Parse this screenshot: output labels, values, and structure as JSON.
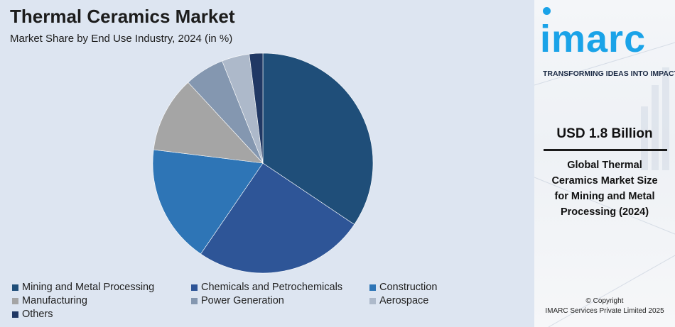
{
  "header": {
    "title": "Thermal Ceramics Market",
    "subtitle": "Market Share by End Use Industry, 2024 (in %)"
  },
  "chart_data": {
    "type": "pie",
    "title": "Thermal Ceramics Market",
    "subtitle": "Market Share by End Use Industry, 2024 (in %)",
    "legend_position": "bottom",
    "slices": [
      {
        "label": "Mining and Metal Processing",
        "value": 34.8,
        "color": "#1f4e79"
      },
      {
        "label": "Chemicals and Petrochemicals",
        "value": 25.4,
        "color": "#2e5597"
      },
      {
        "label": "Construction",
        "value": 17.6,
        "color": "#2e75b6"
      },
      {
        "label": "Manufacturing",
        "value": 11.3,
        "color": "#a5a5a5"
      },
      {
        "label": "Power Generation",
        "value": 5.9,
        "color": "#8497b0"
      },
      {
        "label": "Aerospace",
        "value": 4.1,
        "color": "#adb9ca"
      },
      {
        "label": "Others",
        "value": 2.0,
        "color": "#203864"
      }
    ]
  },
  "sidebar": {
    "logo_text": "imarc",
    "tagline": "TRANSFORMING IDEAS INTO IMPACT",
    "highlight_value": "USD 1.8 Billion",
    "highlight_desc": "Global Thermal Ceramics Market Size for Mining and Metal Processing (2024)",
    "copyright_line1": "© Copyright",
    "copyright_line2": "IMARC Services Private Limited 2025"
  }
}
